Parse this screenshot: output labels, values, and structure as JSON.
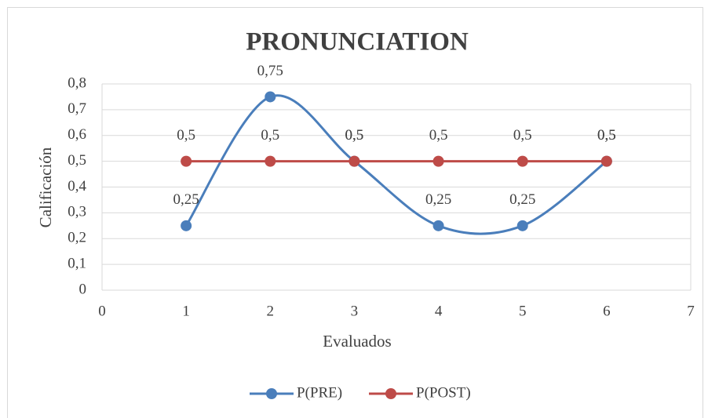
{
  "chart_data": {
    "type": "scatter",
    "title": "PRONUNCIATION",
    "x_label": "Evaluados",
    "y_label": "Calificación",
    "x": [
      1,
      2,
      3,
      4,
      5,
      6
    ],
    "series": [
      {
        "name": "P(PRE)",
        "color": "#4a7ebb",
        "values": [
          0.25,
          0.75,
          0.5,
          0.25,
          0.25,
          0.5
        ],
        "value_labels": [
          "0,25",
          "0,75",
          "0,5",
          "0,25",
          "0,25",
          "0,5"
        ]
      },
      {
        "name": "P(POST)",
        "color": "#be4b48",
        "values": [
          0.5,
          0.5,
          0.5,
          0.5,
          0.5,
          0.5
        ],
        "value_labels": [
          "0,5",
          "0,5",
          "0,5",
          "0,5",
          "0,5",
          "0,5"
        ]
      }
    ],
    "smooth": true,
    "xlim": [
      0,
      7
    ],
    "xticks": [
      0,
      1,
      2,
      3,
      4,
      5,
      6,
      7
    ],
    "ylim": [
      0,
      0.8
    ],
    "yticks": [
      0,
      {
        "value": 0.1,
        "label": "0,1"
      },
      {
        "value": 0.2,
        "label": "0,2"
      },
      {
        "value": 0.3,
        "label": "0,3"
      },
      {
        "value": 0.4,
        "label": "0,4"
      },
      {
        "value": 0.5,
        "label": "0,5"
      },
      {
        "value": 0.6,
        "label": "0,6"
      },
      {
        "value": 0.7,
        "label": "0,7"
      },
      {
        "value": 0.8,
        "label": "0,8"
      }
    ],
    "grid": true,
    "legend": "bottom"
  }
}
